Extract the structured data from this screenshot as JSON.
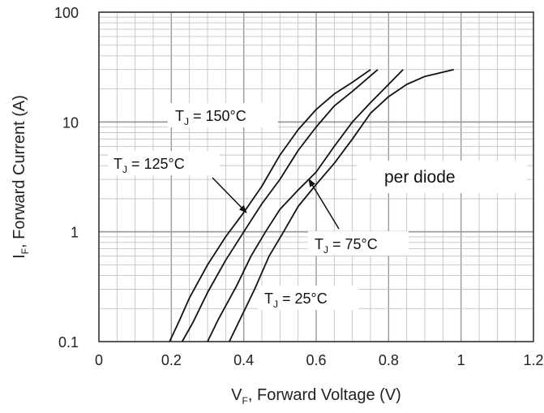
{
  "chart_data": {
    "type": "line",
    "title": "",
    "xlabel": {
      "main": "V",
      "sub": "F",
      "rest": ", Forward Voltage (V)"
    },
    "ylabel": {
      "main": "I",
      "sub": "F",
      "rest": ", Forward Current (A)"
    },
    "x_scale": "linear",
    "y_scale": "log",
    "xlim": [
      0,
      1.2
    ],
    "ylim": [
      0.1,
      100
    ],
    "x_ticks": [
      "0",
      "0.2",
      "0.4",
      "0.6",
      "0.8",
      "1",
      "1.2"
    ],
    "y_ticks": [
      "0.1",
      "1",
      "10",
      "100"
    ],
    "grid": true,
    "series": [
      {
        "name": {
          "main": "T",
          "sub": "J",
          "rest": " = 150°C"
        },
        "points": [
          [
            0.195,
            0.1
          ],
          [
            0.22,
            0.15
          ],
          [
            0.25,
            0.25
          ],
          [
            0.3,
            0.5
          ],
          [
            0.35,
            0.9
          ],
          [
            0.4,
            1.5
          ],
          [
            0.45,
            2.6
          ],
          [
            0.5,
            5
          ],
          [
            0.55,
            8.5
          ],
          [
            0.6,
            13
          ],
          [
            0.65,
            18
          ],
          [
            0.7,
            23
          ],
          [
            0.75,
            30
          ]
        ]
      },
      {
        "name": {
          "main": "T",
          "sub": "J",
          "rest": " = 125°C"
        },
        "points": [
          [
            0.23,
            0.1
          ],
          [
            0.26,
            0.15
          ],
          [
            0.3,
            0.28
          ],
          [
            0.35,
            0.55
          ],
          [
            0.4,
            1
          ],
          [
            0.45,
            1.8
          ],
          [
            0.5,
            3
          ],
          [
            0.55,
            5.5
          ],
          [
            0.6,
            9
          ],
          [
            0.65,
            14
          ],
          [
            0.7,
            19
          ],
          [
            0.77,
            30
          ]
        ]
      },
      {
        "name": {
          "main": "T",
          "sub": "J",
          "rest": " = 75°C"
        },
        "points": [
          [
            0.3,
            0.1
          ],
          [
            0.33,
            0.16
          ],
          [
            0.38,
            0.32
          ],
          [
            0.42,
            0.6
          ],
          [
            0.46,
            1
          ],
          [
            0.5,
            1.6
          ],
          [
            0.55,
            2.4
          ],
          [
            0.6,
            3.5
          ],
          [
            0.65,
            6
          ],
          [
            0.7,
            10
          ],
          [
            0.75,
            15
          ],
          [
            0.8,
            22
          ],
          [
            0.84,
            30
          ]
        ]
      },
      {
        "name": {
          "main": "T",
          "sub": "J",
          "rest": " = 25°C"
        },
        "points": [
          [
            0.36,
            0.1
          ],
          [
            0.39,
            0.16
          ],
          [
            0.43,
            0.3
          ],
          [
            0.47,
            0.6
          ],
          [
            0.51,
            1
          ],
          [
            0.55,
            1.7
          ],
          [
            0.6,
            2.7
          ],
          [
            0.65,
            4.2
          ],
          [
            0.7,
            7
          ],
          [
            0.75,
            12
          ],
          [
            0.8,
            17
          ],
          [
            0.85,
            22
          ],
          [
            0.9,
            26
          ],
          [
            0.98,
            30
          ]
        ]
      }
    ],
    "annotations": [
      {
        "text": {
          "main": "T",
          "sub": "J",
          "rest": " = 150°C"
        }
      },
      {
        "text": {
          "main": "T",
          "sub": "J",
          "rest": " = 125°C"
        }
      },
      {
        "text": {
          "main": "T",
          "sub": "J",
          "rest": " = 75°C"
        }
      },
      {
        "text": {
          "main": "T",
          "sub": "J",
          "rest": " = 25°C"
        }
      },
      {
        "text": "per diode"
      }
    ],
    "colors": {
      "curve": "#111111",
      "grid": "#bdbdbd",
      "frame": "#333333"
    }
  }
}
